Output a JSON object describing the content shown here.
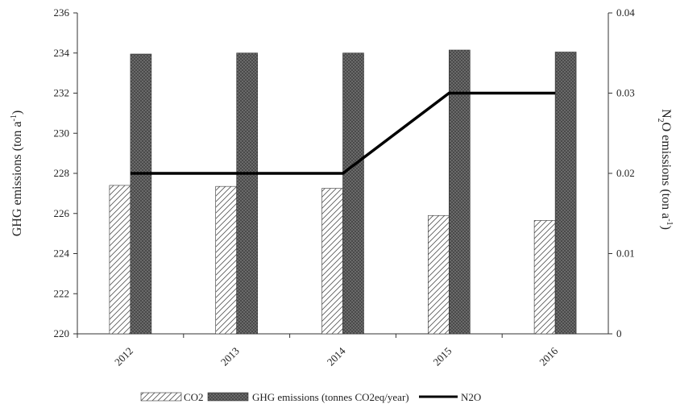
{
  "chart_data": {
    "type": "bar",
    "categories": [
      "2012",
      "2013",
      "2014",
      "2015",
      "2016"
    ],
    "ylabel_left": {
      "main": "GHG emissions  (ton a",
      "sup": "-1",
      "end": ")"
    },
    "ylabel_right": {
      "pre": "N",
      "sub": "2",
      "mid": "O emissions (ton a",
      "sup": "-1",
      "end": ")"
    },
    "y_left": {
      "lim": [
        220,
        236
      ],
      "ticks": [
        220,
        222,
        224,
        226,
        228,
        230,
        232,
        234,
        236
      ]
    },
    "y_right": {
      "lim": [
        0,
        0.04
      ],
      "ticks": [
        "0",
        "0.01",
        "0.02",
        "0.03",
        "0.04"
      ]
    },
    "series": [
      {
        "name": "CO2",
        "kind": "bar",
        "axis": "left",
        "pattern": "hatch",
        "values": [
          227.4,
          227.35,
          227.25,
          225.9,
          225.65
        ]
      },
      {
        "name": "GHG emissions (tonnes CO2eq/year)",
        "kind": "bar",
        "axis": "left",
        "pattern": "dots",
        "values": [
          233.95,
          234.0,
          234.0,
          234.15,
          234.05
        ]
      },
      {
        "name": "N2O",
        "kind": "line",
        "axis": "right",
        "color": "#000000",
        "values": [
          0.02,
          0.02,
          0.02,
          0.03,
          0.03
        ]
      }
    ],
    "legend_position": "bottom",
    "grid": false
  }
}
